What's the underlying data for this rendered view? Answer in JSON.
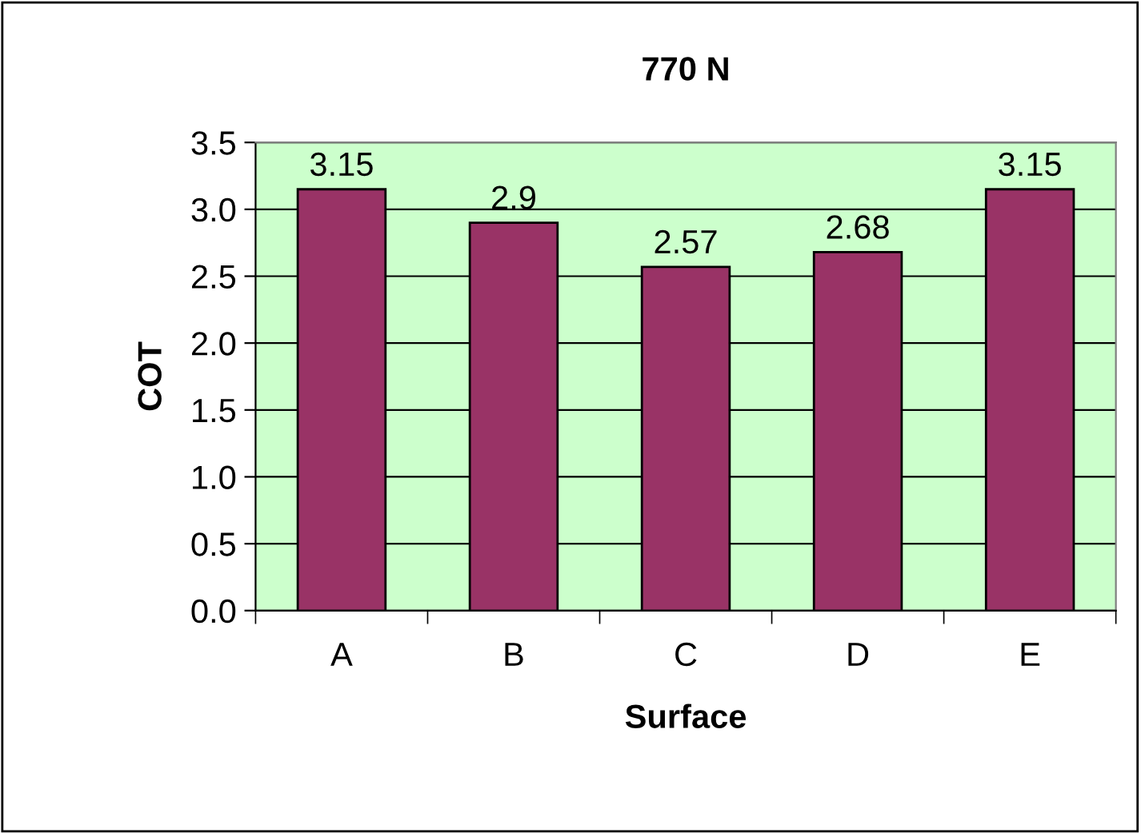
{
  "chart_data": {
    "type": "bar",
    "title": "770 N",
    "xlabel": "Surface",
    "ylabel": "COT",
    "categories": [
      "A",
      "B",
      "C",
      "D",
      "E"
    ],
    "values": [
      3.15,
      2.9,
      2.57,
      2.68,
      3.15
    ],
    "color": "#993366",
    "ylim": [
      0,
      3.5
    ],
    "yticks": [
      {
        "value": 0,
        "label": "0.0"
      },
      {
        "value": 0.5,
        "label": "0.5"
      },
      {
        "value": 1,
        "label": "1.0"
      },
      {
        "value": 1.5,
        "label": "1.5"
      },
      {
        "value": 2,
        "label": "2.0"
      },
      {
        "value": 2.5,
        "label": "2.5"
      },
      {
        "value": 3,
        "label": "3.0"
      },
      {
        "value": 3.5,
        "label": "3.5"
      }
    ],
    "grid": "y",
    "data_labels": true
  }
}
